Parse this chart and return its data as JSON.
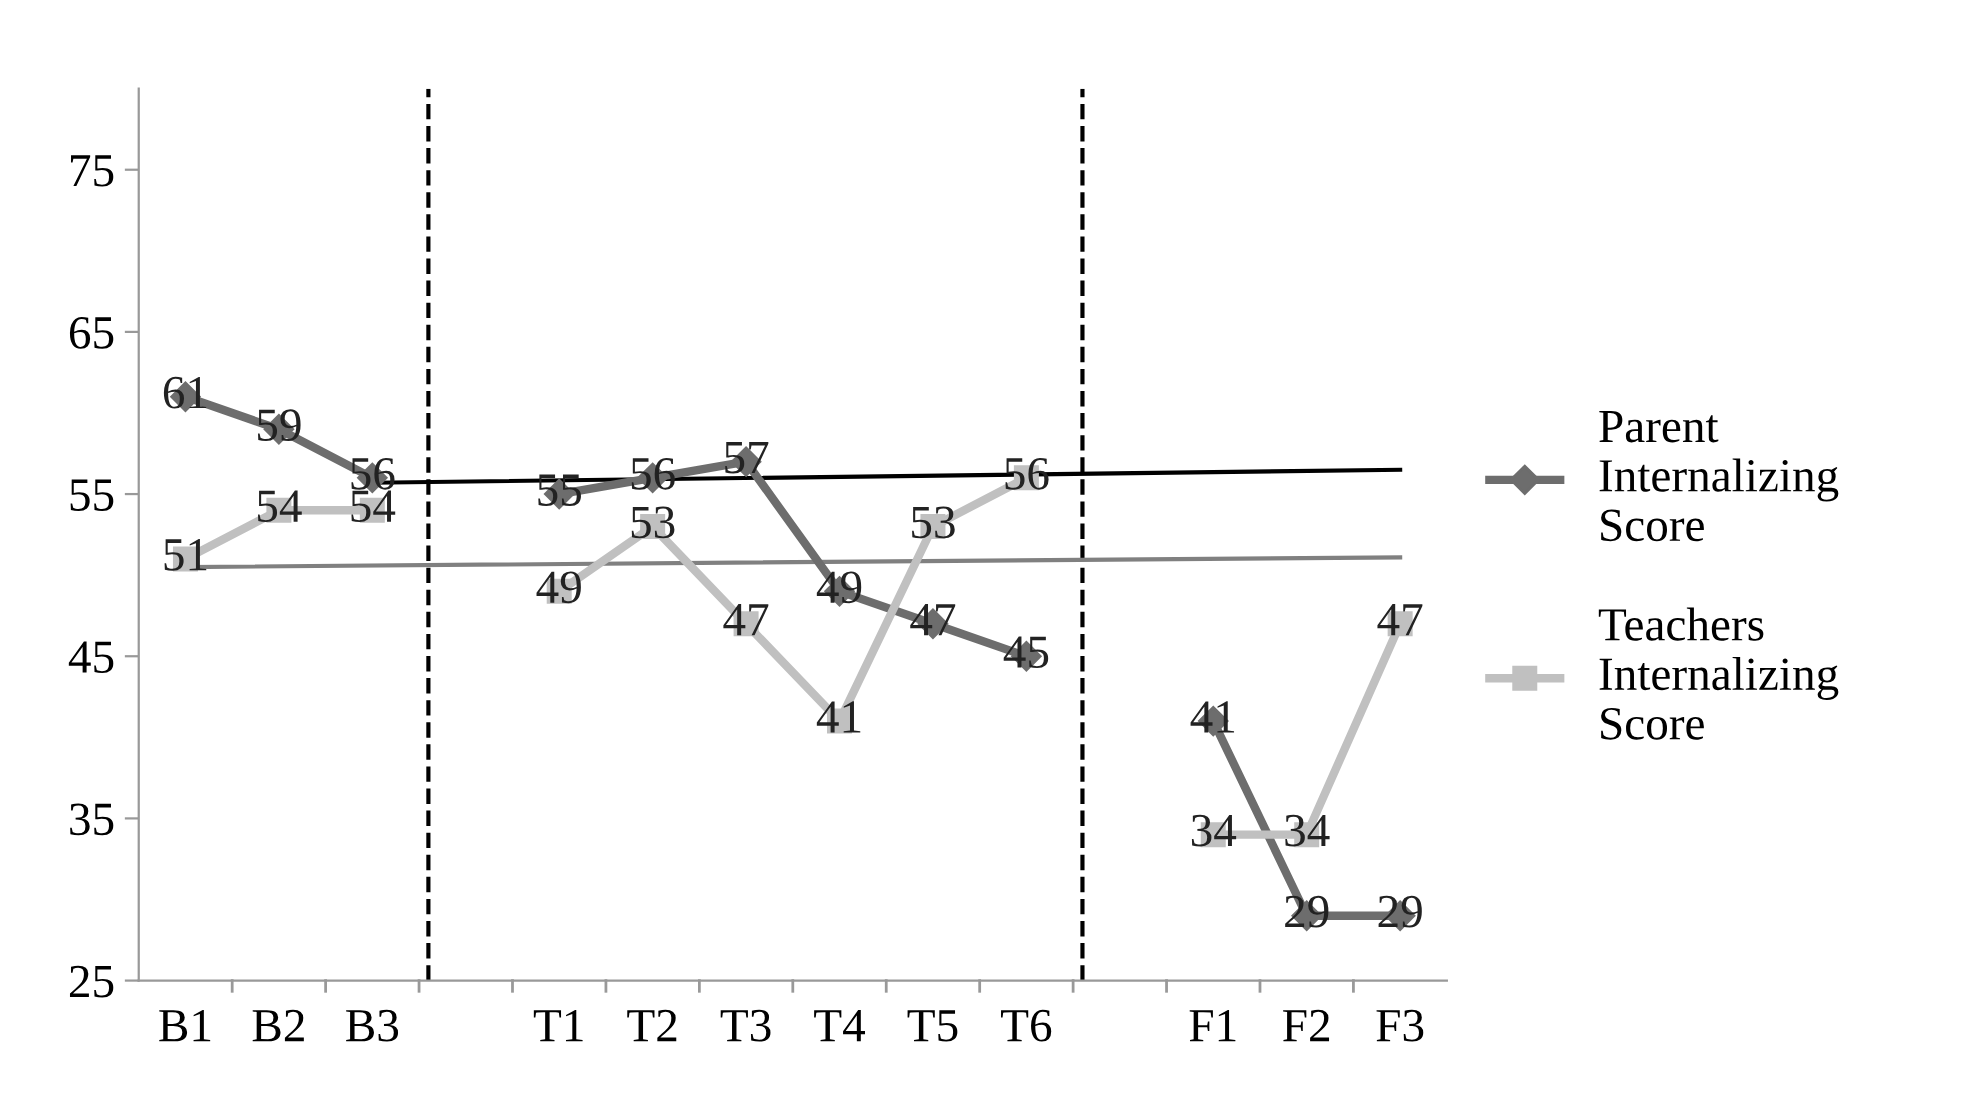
{
  "chart_data": {
    "type": "line",
    "categories": [
      "B1",
      "B2",
      "B3",
      null,
      "T1",
      "T2",
      "T3",
      "T4",
      "T5",
      "T6",
      null,
      "F1",
      "F2",
      "F3"
    ],
    "ylim": [
      25,
      80
    ],
    "yticks": [
      25,
      35,
      45,
      55,
      65,
      75
    ],
    "legend": "right",
    "series": [
      {
        "name": "Parent Internalizing Score",
        "color": "#6d6d6d",
        "marker": "diamond",
        "values": [
          61,
          59,
          56,
          null,
          55,
          56,
          57,
          49,
          47,
          45,
          null,
          41,
          29,
          29
        ],
        "value_labels": [
          "61",
          "59",
          "56",
          null,
          "55",
          "56",
          "57",
          "49",
          "47",
          "45",
          null,
          "41",
          "29",
          "29"
        ]
      },
      {
        "name": "Teachers Internalizing Score",
        "color": "#c0c0c0",
        "marker": "square",
        "values": [
          51,
          54,
          54,
          null,
          49,
          53,
          47,
          41,
          53,
          56,
          null,
          34,
          34,
          47
        ],
        "value_labels": [
          "51",
          "54",
          "54",
          null,
          "49",
          "53",
          "47",
          "41",
          "53",
          "56",
          null,
          "34",
          "34",
          "47"
        ]
      },
      {
        "type": "line",
        "color": "#000000",
        "marker": "none",
        "x": [
          "B3",
          "F3"
        ],
        "values": [
          55.7,
          56.5
        ]
      },
      {
        "type": "line",
        "color": "#808080",
        "marker": "none",
        "x": [
          "B1",
          "F3"
        ],
        "values": [
          50.5,
          51.1
        ]
      }
    ]
  }
}
